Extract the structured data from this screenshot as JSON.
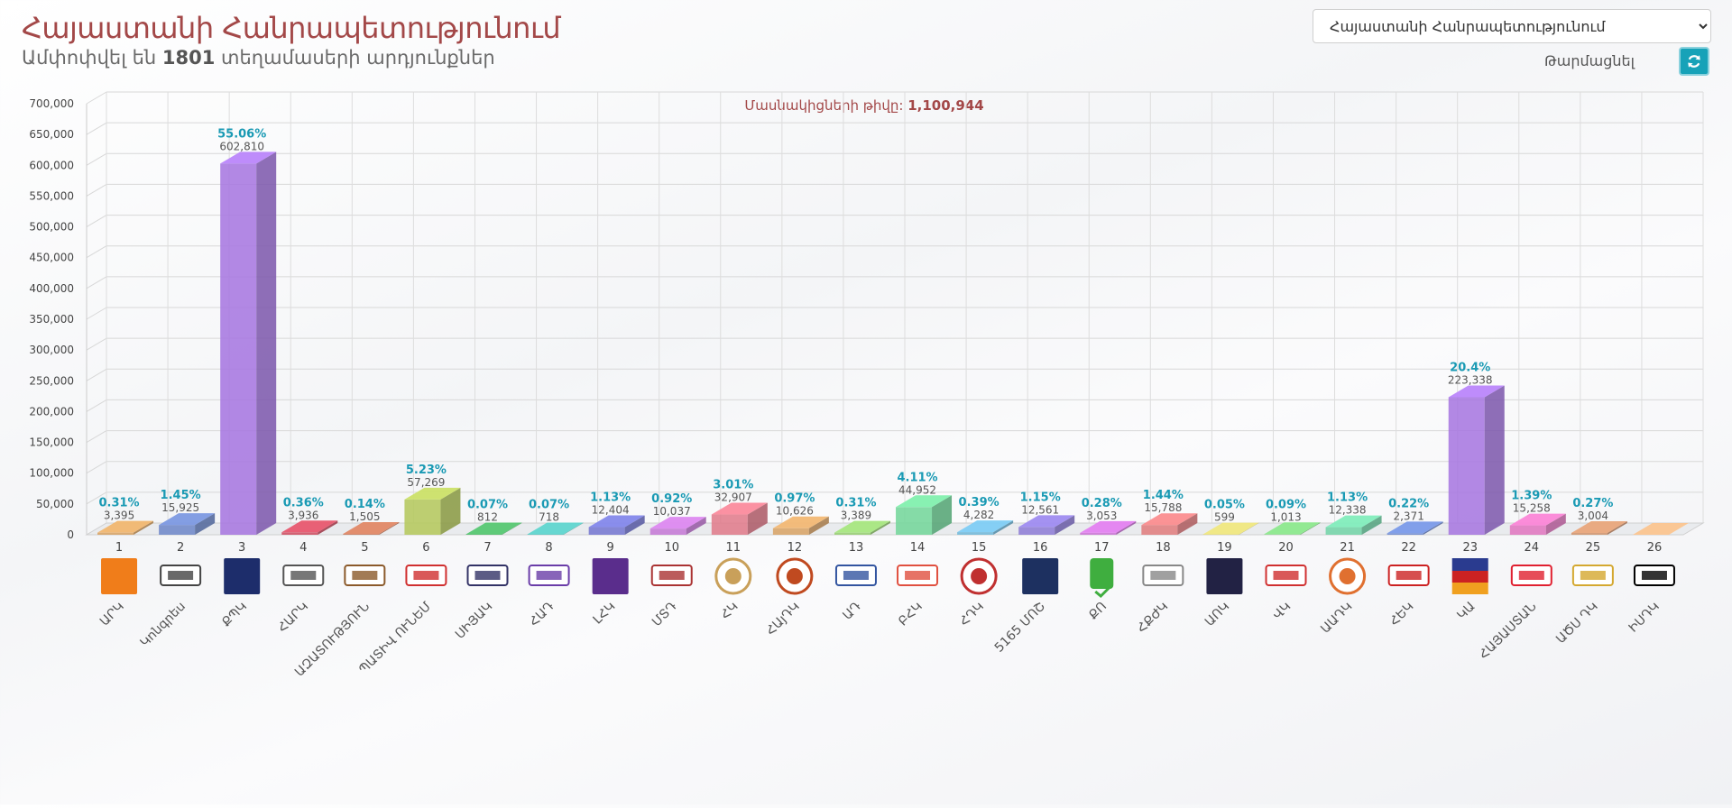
{
  "header": {
    "title": "Հայաստանի Հանրապետությունում",
    "subtitle_prefix": "Ամփոփվել են",
    "subtitle_count": "1801",
    "subtitle_suffix": "տեղամասերի արդյունքներ"
  },
  "region_select": {
    "selected": "Հայաստանի Հանրապետությունում"
  },
  "refresh": {
    "label": "Թարմացնել",
    "icon": "refresh-icon"
  },
  "participants": {
    "label": "Մասնակիցների թիվը:",
    "value": "1,100,944"
  },
  "colors": {
    "title": "#a34848",
    "percent": "#1a9ab4",
    "value": "#555555",
    "accent": "#17a2b8"
  },
  "chart_data": {
    "type": "bar",
    "ylim": [
      0,
      700000
    ],
    "yticks": [
      0,
      50000,
      100000,
      150000,
      200000,
      250000,
      300000,
      350000,
      400000,
      450000,
      500000,
      550000,
      600000,
      650000,
      700000
    ],
    "ytick_labels": [
      "0",
      "50,000",
      "100,000",
      "150,000",
      "200,000",
      "250,000",
      "300,000",
      "350,000",
      "400,000",
      "450,000",
      "500,000",
      "550,000",
      "600,000",
      "650,000",
      "700,000"
    ],
    "grid": true,
    "categories": [
      "1",
      "2",
      "3",
      "4",
      "5",
      "6",
      "7",
      "8",
      "9",
      "10",
      "11",
      "12",
      "13",
      "14",
      "15",
      "16",
      "17",
      "18",
      "19",
      "20",
      "21",
      "22",
      "23",
      "24",
      "25",
      "26"
    ],
    "party_names": [
      "ԱՐԿ",
      "Կոնգրես",
      "ՔՊԿ",
      "ՀԱՐԿ",
      "ԱԶԱՏՈՒԹՅՈՒՆ",
      "ՊԱՏԻՎ ՈՒՆԵՄ",
      "ՍԻՅԱԿ",
      "ՀԱԴ",
      "ԼՀԿ",
      "ՄՏԴ",
      "ՀԿ",
      "ՀԱյԴԿ",
      "ԱԴ",
      "ԲՀԿ",
      "ՀԴԿ",
      "5165 ՄՈՇ",
      "ՔՈ",
      "ՀՔԺԿ",
      "ԱՈԿ",
      "ՎԿ",
      "ԱԱԴԿ",
      "ՀԵԿ",
      "ԿԱ",
      "ՀԱՅԱՍՏԱՆ",
      "ԱԾՍ ԴԿ",
      "ԻՍԴԿ"
    ],
    "values": [
      3395,
      15925,
      602810,
      3936,
      1505,
      57269,
      812,
      718,
      12404,
      10037,
      32907,
      10626,
      3389,
      44952,
      4282,
      12561,
      3053,
      15788,
      599,
      1013,
      12338,
      2371,
      223338,
      15258,
      3004,
      0
    ],
    "value_labels": [
      "3,395",
      "15,925",
      "602,810",
      "3,936",
      "1,505",
      "57,269",
      "812",
      "718",
      "12,404",
      "10,037",
      "32,907",
      "10,626",
      "3,389",
      "44,952",
      "4,282",
      "12,561",
      "3,053",
      "15,788",
      "599",
      "1,013",
      "12,338",
      "2,371",
      "223,338",
      "15,258",
      "3,004",
      ""
    ],
    "percent_labels": [
      "0.31%",
      "1.45%",
      "55.06%",
      "0.36%",
      "0.14%",
      "5.23%",
      "0.07%",
      "0.07%",
      "1.13%",
      "0.92%",
      "3.01%",
      "0.97%",
      "0.31%",
      "4.11%",
      "0.39%",
      "1.15%",
      "0.28%",
      "1.44%",
      "0.05%",
      "0.09%",
      "1.13%",
      "0.22%",
      "20.4%",
      "1.39%",
      "0.27%",
      ""
    ],
    "bar_colors": [
      "#d7a364",
      "#6f89c9",
      "#a778e0",
      "#cf4f63",
      "#c97a5b",
      "#b5c85d",
      "#4eb366",
      "#56bfb9",
      "#7679d2",
      "#c57ad6",
      "#e07c8c",
      "#d8a468",
      "#96ce72",
      "#74d69b",
      "#72b8da",
      "#8e7dd6",
      "#cc74d6",
      "#e07e80",
      "#d6cf72",
      "#7ed07e",
      "#74d4a8",
      "#6e8ad0",
      "#a778e0",
      "#e078c0",
      "#d0946e",
      "#e0b080"
    ],
    "logo_colors": [
      "#f07d1a",
      "#444444",
      "#1d2d6b",
      "#555555",
      "#8b5a2b",
      "#d03030",
      "#333366",
      "#6a3da8",
      "#5a2d8c",
      "#aa3333",
      "#c9a05a",
      "#c04a20",
      "#3355a0",
      "#e05040",
      "#c03030",
      "#1d3060",
      "#3fae3f",
      "#888888",
      "#222244",
      "#d03030",
      "#e07030",
      "#cc2222",
      "#2a3b8f",
      "#e02030",
      "#d4a830",
      "#000000"
    ]
  }
}
